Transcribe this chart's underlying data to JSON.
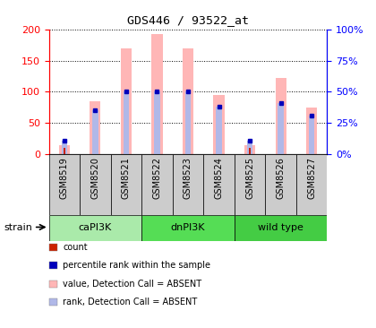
{
  "title": "GDS446 / 93522_at",
  "samples": [
    "GSM8519",
    "GSM8520",
    "GSM8521",
    "GSM8522",
    "GSM8523",
    "GSM8524",
    "GSM8525",
    "GSM8526",
    "GSM8527"
  ],
  "value_absent": [
    15,
    85,
    170,
    193,
    170,
    95,
    15,
    122,
    75
  ],
  "rank_absent": [
    22,
    70,
    100,
    101,
    100,
    76,
    21,
    82,
    62
  ],
  "count_values": [
    10,
    0,
    0,
    0,
    0,
    0,
    10,
    0,
    0
  ],
  "percentile_rank": [
    22,
    70,
    100,
    101,
    100,
    76,
    21,
    82,
    62
  ],
  "ylim_left": [
    0,
    200
  ],
  "ylim_right": [
    0,
    100
  ],
  "yticks_left": [
    0,
    50,
    100,
    150,
    200
  ],
  "yticks_right": [
    0,
    25,
    50,
    75,
    100
  ],
  "ytick_labels_right": [
    "0%",
    "25%",
    "50%",
    "75%",
    "100%"
  ],
  "color_value_absent": "#ffb6b6",
  "color_rank_absent": "#b0b8e8",
  "color_count": "#cc2200",
  "color_percentile": "#0000bb",
  "group_defs": [
    {
      "name": "caPI3K",
      "start": 0,
      "end": 3,
      "color": "#aaeaaa"
    },
    {
      "name": "dnPI3K",
      "start": 3,
      "end": 6,
      "color": "#55dd55"
    },
    {
      "name": "wild type",
      "start": 6,
      "end": 9,
      "color": "#44cc44"
    }
  ],
  "legend": [
    {
      "label": "count",
      "color": "#cc2200"
    },
    {
      "label": "percentile rank within the sample",
      "color": "#0000bb"
    },
    {
      "label": "value, Detection Call = ABSENT",
      "color": "#ffb6b6"
    },
    {
      "label": "rank, Detection Call = ABSENT",
      "color": "#b0b8e8"
    }
  ],
  "tick_bg_color": "#cccccc",
  "bar_width": 0.35,
  "rank_bar_width": 0.18
}
